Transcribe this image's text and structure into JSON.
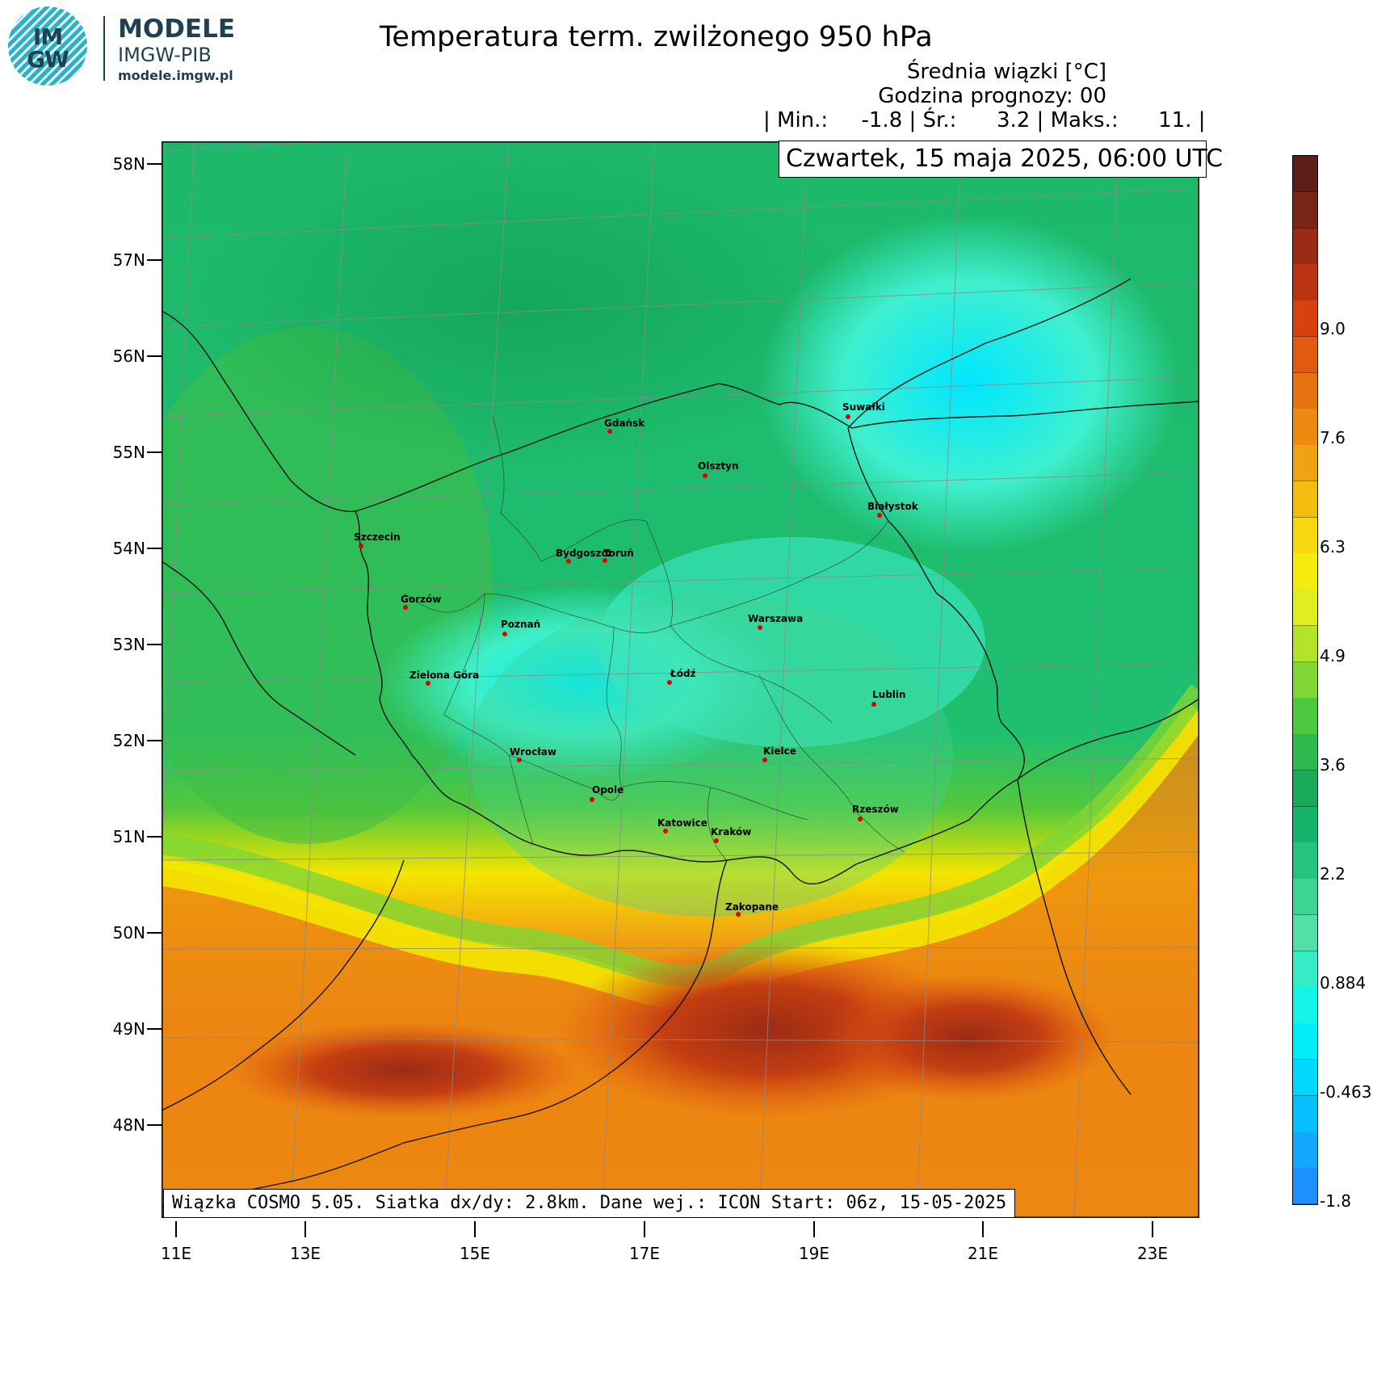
{
  "logo": {
    "letters_top": "IM",
    "letters_bottom": "GW",
    "line1": "MODELE",
    "line2": "IMGW-PIB",
    "line3": "modele.imgw.pl"
  },
  "header": {
    "title": "Temperatura term. zwilżonego 950 hPa",
    "subtitle": "Średnia wiązki [°C]",
    "forecast_hour": "Godzina prognozy: 00",
    "stats": "| Min.:     -1.8 | Śr.:      3.2 | Maks.:      11. |",
    "datetime": "Czwartek, 15 maja 2025, 06:00 UTC"
  },
  "map": {
    "lat_labels": [
      "58N",
      "57N",
      "56N",
      "55N",
      "54N",
      "53N",
      "52N",
      "51N",
      "50N",
      "49N",
      "48N"
    ],
    "lon_labels": [
      "11E",
      "13E",
      "15E",
      "17E",
      "19E",
      "21E",
      "23E"
    ],
    "cities": [
      {
        "name": "Gdańsk"
      },
      {
        "name": "Olsztyn"
      },
      {
        "name": "Suwałki"
      },
      {
        "name": "Białystok"
      },
      {
        "name": "Szczecin"
      },
      {
        "name": "Bydgoszcz"
      },
      {
        "name": "Toruń"
      },
      {
        "name": "Gorzów"
      },
      {
        "name": "Poznań"
      },
      {
        "name": "Warszawa"
      },
      {
        "name": "Zielona Góra"
      },
      {
        "name": "Łódź"
      },
      {
        "name": "Lublin"
      },
      {
        "name": "Wrocław"
      },
      {
        "name": "Kielce"
      },
      {
        "name": "Opole"
      },
      {
        "name": "Rzeszów"
      },
      {
        "name": "Katowice"
      },
      {
        "name": "Kraków"
      },
      {
        "name": "Zakopane"
      }
    ],
    "colors": {
      "cold_cyan": "#00e8ff",
      "green": "#1db86a",
      "dark_green": "#0f9a4f",
      "yellow": "#f4e600",
      "orange": "#e87a10",
      "red": "#b53a1a",
      "city_dot": "#e00000"
    }
  },
  "footer": "Wiązka COSMO 5.05. Siatka dx/dy: 2.8km. Dane wej.: ICON Start: 06z, 15-05-2025",
  "colorbar": {
    "labels": [
      "9.0",
      "7.6",
      "6.3",
      "4.9",
      "3.6",
      "2.2",
      "0.884",
      "-0.463",
      "-1.8"
    ],
    "stops": [
      "#5a2018",
      "#7a2616",
      "#9b2b14",
      "#bb3412",
      "#d5420f",
      "#e05a10",
      "#e77212",
      "#ec8a12",
      "#f0a312",
      "#f3bd10",
      "#f5d80e",
      "#f4ec0c",
      "#dfee20",
      "#b4e42a",
      "#7fd634",
      "#4cc83c",
      "#2fb84e",
      "#1aa85a",
      "#16b46a",
      "#23c47e",
      "#3ed494",
      "#52e0a8",
      "#35ecc4",
      "#14f4e4",
      "#00eef8",
      "#00d8ff",
      "#08c0ff",
      "#14a8ff",
      "#1f90ff"
    ]
  }
}
